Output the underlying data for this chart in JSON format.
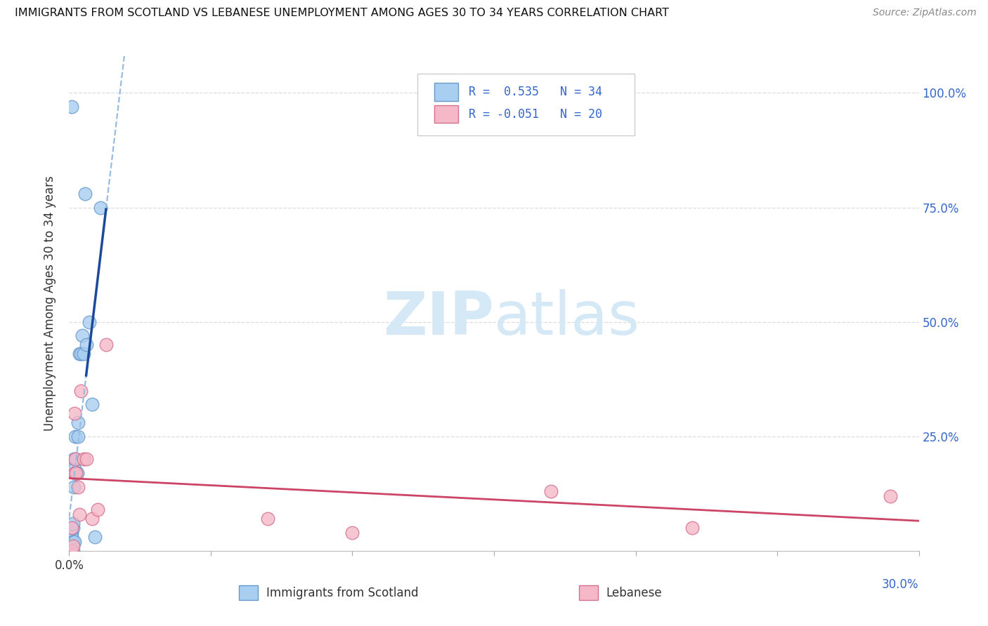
{
  "title": "IMMIGRANTS FROM SCOTLAND VS LEBANESE UNEMPLOYMENT AMONG AGES 30 TO 34 YEARS CORRELATION CHART",
  "source": "Source: ZipAtlas.com",
  "ylabel": "Unemployment Among Ages 30 to 34 years",
  "ylim": [
    0,
    1.08
  ],
  "xlim": [
    0,
    0.3
  ],
  "yticks": [
    0.0,
    0.25,
    0.5,
    0.75,
    1.0
  ],
  "ytick_labels": [
    "",
    "25.0%",
    "50.0%",
    "75.0%",
    "100.0%"
  ],
  "xticks": [
    0.0,
    0.05,
    0.1,
    0.15,
    0.2,
    0.25,
    0.3
  ],
  "blue_color": "#A8CEF0",
  "blue_edge": "#6699CC",
  "pink_color": "#F5B8C8",
  "pink_edge": "#D47090",
  "reg_blue_solid": "#1A4A99",
  "reg_blue_dash": "#99BBDD",
  "reg_pink": "#CC4466",
  "watermark_zip": "ZIP",
  "watermark_atlas": "atlas",
  "watermark_color": "#D5E8F5",
  "grid_color": "#DDDDDD",
  "tick_label_color": "#3366CC",
  "R_scotland": "0.535",
  "N_scotland": "34",
  "R_lebanon": "-0.051",
  "N_lebanon": "20",
  "legend1_label": "Immigrants from Scotland",
  "legend2_label": "Lebanese",
  "scotland_x": [
    0.0008,
    0.0008,
    0.001,
    0.001,
    0.001,
    0.0012,
    0.0012,
    0.0013,
    0.0013,
    0.0014,
    0.0015,
    0.0015,
    0.0016,
    0.0017,
    0.0018,
    0.002,
    0.0022,
    0.0022,
    0.0025,
    0.0025,
    0.0028,
    0.003,
    0.0032,
    0.0035,
    0.004,
    0.0045,
    0.005,
    0.0055,
    0.006,
    0.007,
    0.008,
    0.009,
    0.001,
    0.011
  ],
  "scotland_y": [
    0.02,
    0.04,
    0.0,
    0.01,
    0.03,
    0.0,
    0.01,
    0.02,
    0.05,
    0.0,
    0.02,
    0.06,
    0.14,
    0.2,
    0.18,
    0.02,
    0.17,
    0.25,
    0.2,
    0.17,
    0.17,
    0.28,
    0.25,
    0.43,
    0.43,
    0.47,
    0.43,
    0.78,
    0.45,
    0.5,
    0.32,
    0.03,
    0.97,
    0.75
  ],
  "lebanon_x": [
    0.0008,
    0.001,
    0.0015,
    0.0018,
    0.002,
    0.0022,
    0.0025,
    0.003,
    0.0035,
    0.004,
    0.005,
    0.006,
    0.008,
    0.01,
    0.013,
    0.07,
    0.1,
    0.17,
    0.22,
    0.29
  ],
  "lebanon_y": [
    0.0,
    0.05,
    0.01,
    0.3,
    0.17,
    0.2,
    0.17,
    0.14,
    0.08,
    0.35,
    0.2,
    0.2,
    0.07,
    0.09,
    0.45,
    0.07,
    0.04,
    0.13,
    0.05,
    0.12
  ]
}
